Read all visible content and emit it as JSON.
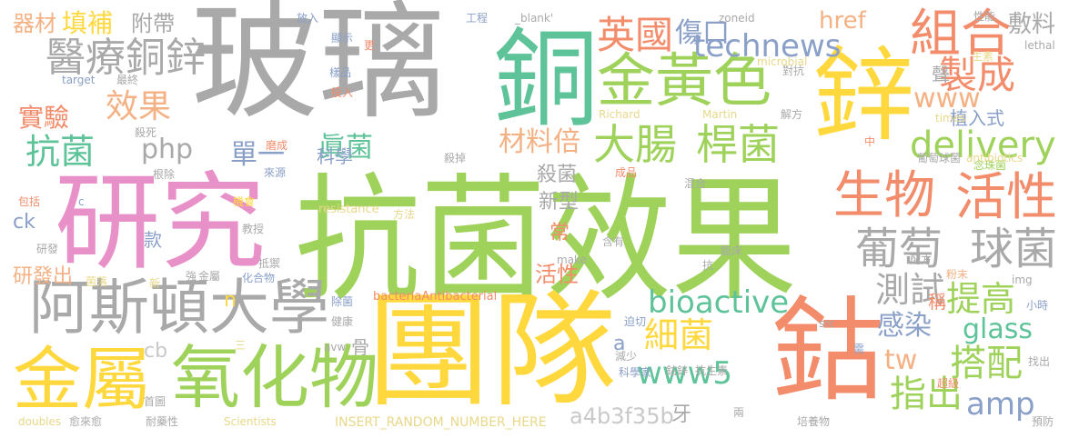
{
  "words": [
    {
      "text": "抗菌效果",
      "color": "#9fd25a"
    },
    {
      "text": "玻璃",
      "color": "#a9a9a9"
    },
    {
      "text": "團隊",
      "color": "#ffd83d"
    },
    {
      "text": "研究",
      "color": "#e890c8"
    },
    {
      "text": "銅",
      "color": "#5fc39a"
    },
    {
      "text": "鈷",
      "color": "#f28c6b"
    },
    {
      "text": "鋅",
      "color": "#ffd83d"
    },
    {
      "text": "金屬",
      "color": "#ffd83d"
    },
    {
      "text": "氧化物",
      "color": "#9fd25a"
    },
    {
      "text": "阿斯頓大學",
      "color": "#a9a9a9"
    },
    {
      "text": "金黃色",
      "color": "#9fd25a"
    },
    {
      "text": "生物",
      "color": "#f28c6b"
    },
    {
      "text": "活性",
      "color": "#f28c6b"
    },
    {
      "text": "葡萄",
      "color": "#a9a9a9"
    },
    {
      "text": "球菌",
      "color": "#a9a9a9"
    },
    {
      "text": "組合",
      "color": "#f28c6b"
    },
    {
      "text": "醫療銅鋅",
      "color": "#a9a9a9"
    },
    {
      "text": "technews",
      "color": "#8aa0c8"
    },
    {
      "text": "大腸",
      "color": "#9fd25a"
    },
    {
      "text": "桿菌",
      "color": "#9fd25a"
    },
    {
      "text": "抗菌",
      "color": "#5fc39a"
    },
    {
      "text": "製成",
      "color": "#f28c6b"
    },
    {
      "text": "英國",
      "color": "#f28c6b"
    },
    {
      "text": "傷口",
      "color": "#8aa0c8"
    },
    {
      "text": "delivery",
      "color": "#9fd25a"
    },
    {
      "text": "bioactive",
      "color": "#5fc39a"
    },
    {
      "text": "細菌",
      "color": "#ffd83d"
    },
    {
      "text": "www5",
      "color": "#5fc39a"
    },
    {
      "text": "搭配",
      "color": "#9fd25a"
    },
    {
      "text": "指出",
      "color": "#9fd25a"
    },
    {
      "text": "amp",
      "color": "#8aa0c8"
    },
    {
      "text": "測試",
      "color": "#a9a9a9"
    },
    {
      "text": "提高",
      "color": "#9fd25a"
    },
    {
      "text": "材料倍",
      "color": "#f4b183"
    },
    {
      "text": "效果",
      "color": "#f4b183"
    },
    {
      "text": "實驗",
      "color": "#f28c6b"
    },
    {
      "text": "php",
      "color": "#a9a9a9"
    },
    {
      "text": "單一",
      "color": "#8aa0c8"
    },
    {
      "text": "眞菌",
      "color": "#5fc39a"
    },
    {
      "text": "www",
      "color": "#f4b183"
    },
    {
      "text": "glass",
      "color": "#5fc39a"
    },
    {
      "text": "tw",
      "color": "#f4b183"
    },
    {
      "text": "感染",
      "color": "#8aa0c8"
    },
    {
      "text": "敷料",
      "color": "#a9a9a9"
    },
    {
      "text": "href",
      "color": "#f4b183"
    },
    {
      "text": "器材",
      "color": "#f4b183"
    },
    {
      "text": "填補",
      "color": "#ffd83d"
    },
    {
      "text": "附帶",
      "color": "#a9a9a9"
    },
    {
      "text": "a4b3f35b",
      "color": "#c9c9c9"
    },
    {
      "text": "牙",
      "color": "#a9a9a9"
    },
    {
      "text": "科學",
      "color": "#8aa0c8"
    },
    {
      "text": "殺菌",
      "color": "#a9a9a9"
    },
    {
      "text": "新型",
      "color": "#a9a9a9"
    },
    {
      "text": "活性",
      "color": "#f28c6b"
    },
    {
      "text": "常",
      "color": "#f28c6b"
    },
    {
      "text": "款",
      "color": "#8aa0c8"
    },
    {
      "text": "cb",
      "color": "#c9c9c9"
    },
    {
      "text": "研發出",
      "color": "#f4b183"
    },
    {
      "text": "ck",
      "color": "#8aa0c8"
    },
    {
      "text": "n",
      "color": "#ffd83d"
    },
    {
      "text": "a",
      "color": "#8aa0c8"
    },
    {
      "text": "骨",
      "color": "#a9a9a9"
    },
    {
      "text": "植入式",
      "color": "#8aa0c8"
    },
    {
      "text": "聲",
      "color": "#a9a9a9"
    },
    {
      "text": "稱",
      "color": "#f28c6b"
    },
    {
      "text": "INSERT_RANDOM_NUMBER_HERE",
      "color": "#e8d88a"
    },
    {
      "text": "bacteriaAntibacterial",
      "color": "#f28c6b"
    },
    {
      "text": "resistance",
      "color": "#e8d88a"
    },
    {
      "text": "Scientists",
      "color": "#e8d88a"
    },
    {
      "text": "doubles",
      "color": "#e8d88a"
    },
    {
      "text": "_blank'",
      "color": "#a9a9a9"
    },
    {
      "text": "工程",
      "color": "#8aa0c8"
    },
    {
      "text": "放入",
      "color": "#8aa0c8"
    },
    {
      "text": "顯示",
      "color": "#8aa0c8"
    },
    {
      "text": "更",
      "color": "#f28c6b"
    },
    {
      "text": "zoneid",
      "color": "#a9a9a9"
    },
    {
      "text": "性能",
      "color": "#a9a9a9"
    },
    {
      "text": "microbial",
      "color": "#e8d88a"
    },
    {
      "text": "對抗",
      "color": "#a9a9a9"
    },
    {
      "text": "lethal",
      "color": "#a9a9a9"
    },
    {
      "text": "生素",
      "color": "#e8d88a"
    },
    {
      "text": "target",
      "color": "#8aa0c8"
    },
    {
      "text": "最終",
      "color": "#a9a9a9"
    },
    {
      "text": "樣品",
      "color": "#8aa0c8"
    },
    {
      "text": "投入",
      "color": "#f28c6b"
    },
    {
      "text": "Richard",
      "color": "#e8d88a"
    },
    {
      "text": "Martin",
      "color": "#e8d88a"
    },
    {
      "text": "解方",
      "color": "#a9a9a9"
    },
    {
      "text": "times",
      "color": "#e8d88a"
    },
    {
      "text": "殺死",
      "color": "#a9a9a9"
    },
    {
      "text": "磨成",
      "color": "#f28c6b"
    },
    {
      "text": "中",
      "color": "#f28c6b"
    },
    {
      "text": "葡萄球菌",
      "color": "#a9a9a9"
    },
    {
      "text": "念珠菌",
      "color": "#9fd25a"
    },
    {
      "text": "antibiotics",
      "color": "#e8d88a"
    },
    {
      "text": "根除",
      "color": "#a9a9a9"
    },
    {
      "text": "來源",
      "color": "#8aa0c8"
    },
    {
      "text": "殺掉",
      "color": "#a9a9a9"
    },
    {
      "text": "成品",
      "color": "#f28c6b"
    },
    {
      "text": "混合",
      "color": "#a9a9a9"
    },
    {
      "text": "機會",
      "color": "#ffd83d"
    },
    {
      "text": "包括",
      "color": "#f28c6b"
    },
    {
      "text": "c",
      "color": "#8aa0c8"
    },
    {
      "text": "方法",
      "color": "#e8d88a"
    },
    {
      "text": "教授",
      "color": "#a9a9a9"
    },
    {
      "text": "含有",
      "color": "#a9a9a9"
    },
    {
      "text": "研發",
      "color": "#a9a9a9"
    },
    {
      "text": "make",
      "color": "#a9a9a9"
    },
    {
      "text": "抗",
      "color": "#a9a9a9"
    },
    {
      "text": "臨床",
      "color": "#a9a9a9"
    },
    {
      "text": "抵禦",
      "color": "#a9a9a9"
    },
    {
      "text": "配方",
      "color": "#a9a9a9"
    },
    {
      "text": "粉末",
      "color": "#f4b183"
    },
    {
      "text": "img",
      "color": "#a9a9a9"
    },
    {
      "text": "強",
      "color": "#a9a9a9"
    },
    {
      "text": "金屬",
      "color": "#a9a9a9"
    },
    {
      "text": "化合物",
      "color": "#8aa0c8"
    },
    {
      "text": "菌落",
      "color": "#e8d88a"
    },
    {
      "text": "新",
      "color": "#e8d88a"
    },
    {
      "text": "除菌",
      "color": "#8aa0c8"
    },
    {
      "text": "健康",
      "color": "#a9a9a9"
    },
    {
      "text": "迫切",
      "color": "#8aa0c8"
    },
    {
      "text": "小時",
      "color": "#8aa0c8"
    },
    {
      "text": "src",
      "color": "#a9a9a9"
    },
    {
      "text": "三",
      "color": "#e8d88a"
    },
    {
      "text": "avw",
      "color": "#a9a9a9"
    },
    {
      "text": "減少",
      "color": "#a9a9a9"
    },
    {
      "text": "需",
      "color": "#8aa0c8"
    },
    {
      "text": "找出",
      "color": "#a9a9a9"
    },
    {
      "text": "科學家",
      "color": "#8aa0c8"
    },
    {
      "text": "鈷鋅",
      "color": "#a9a9a9"
    },
    {
      "text": "抗生素",
      "color": "#a9a9a9"
    },
    {
      "text": "超級",
      "color": "#f28c6b"
    },
    {
      "text": "首圖",
      "color": "#a9a9a9"
    },
    {
      "text": "愈來愈",
      "color": "#a9a9a9"
    },
    {
      "text": "耐藥性",
      "color": "#a9a9a9"
    },
    {
      "text": "兩",
      "color": "#a9a9a9"
    },
    {
      "text": "培養物",
      "color": "#a9a9a9"
    },
    {
      "text": "預防",
      "color": "#a9a9a9"
    }
  ]
}
